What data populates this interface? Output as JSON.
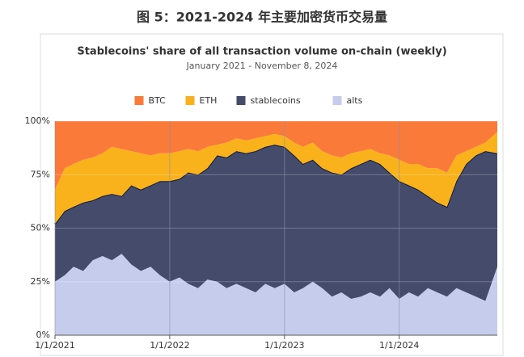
{
  "header": {
    "title": "图 5：2021-2024 年主要加密货币交易量"
  },
  "chart_data": {
    "type": "stacked_area",
    "title": "Stablecoins' share of all transaction volume on-chain (weekly)",
    "subtitle": "January 2021 - November 8, 2024",
    "x": [
      "1/1/2021",
      "2/1/2021",
      "3/1/2021",
      "4/1/2021",
      "5/1/2021",
      "6/1/2021",
      "7/1/2021",
      "8/1/2021",
      "9/1/2021",
      "10/1/2021",
      "11/1/2021",
      "12/1/2021",
      "1/1/2022",
      "2/1/2022",
      "3/1/2022",
      "4/1/2022",
      "5/1/2022",
      "6/1/2022",
      "7/1/2022",
      "8/1/2022",
      "9/1/2022",
      "10/1/2022",
      "11/1/2022",
      "12/1/2022",
      "1/1/2023",
      "2/1/2023",
      "3/1/2023",
      "4/1/2023",
      "5/1/2023",
      "6/1/2023",
      "7/1/2023",
      "8/1/2023",
      "9/1/2023",
      "10/1/2023",
      "11/1/2023",
      "12/1/2023",
      "1/1/2024",
      "2/1/2024",
      "3/1/2024",
      "4/1/2024",
      "5/1/2024",
      "6/1/2024",
      "7/1/2024",
      "8/1/2024",
      "9/1/2024",
      "10/1/2024",
      "11/8/2024"
    ],
    "series": [
      {
        "name": "BTC",
        "color": "#fa7a3a",
        "values": [
          32,
          22,
          20,
          18,
          17,
          15,
          12,
          13,
          14,
          15,
          16,
          15,
          15,
          14,
          13,
          14,
          12,
          11,
          10,
          8,
          9,
          8,
          7,
          6,
          7,
          10,
          12,
          10,
          14,
          16,
          17,
          15,
          14,
          13,
          15,
          16,
          18,
          20,
          20,
          22,
          22,
          24,
          16,
          14,
          12,
          10,
          5
        ]
      },
      {
        "name": "ETH",
        "color": "#f9b21c",
        "values": [
          16,
          20,
          20,
          20,
          20,
          20,
          22,
          22,
          16,
          17,
          14,
          13,
          13,
          13,
          11,
          11,
          10,
          5,
          7,
          6,
          6,
          6,
          5,
          5,
          5,
          6,
          8,
          8,
          8,
          8,
          8,
          7,
          6,
          5,
          5,
          8,
          10,
          10,
          12,
          13,
          16,
          16,
          12,
          6,
          4,
          4,
          10
        ]
      },
      {
        "name": "stablecoins",
        "color": "#444b6b",
        "values": [
          27,
          30,
          28,
          32,
          28,
          28,
          31,
          27,
          37,
          38,
          38,
          44,
          47,
          46,
          52,
          53,
          52,
          59,
          61,
          62,
          63,
          66,
          64,
          67,
          64,
          64,
          58,
          57,
          56,
          58,
          55,
          61,
          62,
          62,
          62,
          54,
          55,
          50,
          50,
          43,
          42,
          42,
          50,
          60,
          66,
          70,
          53
        ]
      },
      {
        "name": "alts",
        "color": "#c6cdec",
        "values": [
          25,
          28,
          32,
          30,
          35,
          37,
          35,
          38,
          33,
          30,
          32,
          28,
          25,
          27,
          24,
          22,
          26,
          25,
          22,
          24,
          22,
          20,
          24,
          22,
          24,
          20,
          22,
          25,
          22,
          18,
          20,
          17,
          18,
          20,
          18,
          22,
          17,
          20,
          18,
          22,
          20,
          18,
          22,
          20,
          18,
          16,
          32
        ]
      }
    ],
    "xlim": [
      "1/1/2021",
      "11/8/2024"
    ],
    "xticks": [
      "1/1/2021",
      "1/1/2022",
      "1/1/2023",
      "1/1/2024"
    ],
    "ylim": [
      0,
      100
    ],
    "yticks": [
      {
        "value": 0,
        "label": "0%"
      },
      {
        "value": 25,
        "label": "25%"
      },
      {
        "value": 50,
        "label": "50%"
      },
      {
        "value": 75,
        "label": "75%"
      },
      {
        "value": 100,
        "label": "100%"
      }
    ],
    "grid": true
  }
}
